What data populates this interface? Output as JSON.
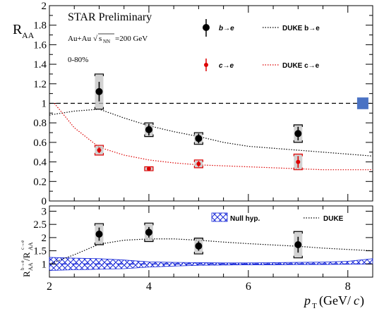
{
  "chart_data": [
    {
      "type": "scatter",
      "title": "STAR Preliminary",
      "subtitle": "Au+Au √sNN=200 GeV",
      "centrality": "0-80%",
      "ylabel": "R_AA",
      "xlabel": "p_T (GeV/c)",
      "xlim": [
        2,
        8.5
      ],
      "ylim": [
        0,
        2
      ],
      "yticks": [
        "0",
        "0.2",
        "0.4",
        "0.6",
        "0.8",
        "1",
        "1.2",
        "1.4",
        "1.6",
        "1.8",
        "2"
      ],
      "reference_line": 1,
      "legend": {
        "placement": "top",
        "bottom_e": "b→e",
        "charm_e": "c→e",
        "duke_b": "DUKE  b→e",
        "duke_c": "DUKE  c→e"
      },
      "series": [
        {
          "name": "b→e",
          "color": "#000000",
          "points": [
            {
              "x": 3.0,
              "y": 1.12,
              "err": 0.1,
              "sys": 0.18
            },
            {
              "x": 4.0,
              "y": 0.73,
              "err": 0.06,
              "sys": 0.07
            },
            {
              "x": 5.0,
              "y": 0.64,
              "err": 0.05,
              "sys": 0.06
            },
            {
              "x": 7.0,
              "y": 0.69,
              "err": 0.07,
              "sys": 0.09
            }
          ]
        },
        {
          "name": "c→e",
          "color": "#dd0000",
          "points": [
            {
              "x": 3.0,
              "y": 0.52,
              "err": 0.03,
              "sys": 0.05
            },
            {
              "x": 4.0,
              "y": 0.33,
              "err": 0.015,
              "sys": 0.02
            },
            {
              "x": 5.0,
              "y": 0.38,
              "err": 0.03,
              "sys": 0.04
            },
            {
              "x": 7.0,
              "y": 0.4,
              "err": 0.06,
              "sys": 0.08
            }
          ]
        },
        {
          "name": "DUKE  b→e",
          "color": "#000000",
          "style": "dotted",
          "x": [
            2.0,
            2.5,
            3.0,
            3.5,
            4.0,
            4.5,
            5.0,
            5.5,
            6.0,
            6.5,
            7.0,
            7.5,
            8.0,
            8.5
          ],
          "y": [
            0.88,
            0.92,
            0.94,
            0.85,
            0.77,
            0.71,
            0.66,
            0.6,
            0.56,
            0.54,
            0.52,
            0.5,
            0.48,
            0.46
          ]
        },
        {
          "name": "DUKE  c→e",
          "color": "#dd0000",
          "style": "dotted",
          "x": [
            2.1,
            2.5,
            3.0,
            3.5,
            4.0,
            4.5,
            5.0,
            5.5,
            6.0,
            6.5,
            7.0,
            7.5,
            8.0,
            8.5
          ],
          "y": [
            1.0,
            0.75,
            0.55,
            0.47,
            0.42,
            0.39,
            0.37,
            0.36,
            0.35,
            0.34,
            0.33,
            0.32,
            0.32,
            0.32
          ]
        }
      ],
      "norm_box": {
        "x": 8.3,
        "y": 1.0,
        "half": 0.06,
        "color": "#4a72c4"
      }
    },
    {
      "type": "scatter",
      "ylabel": "R_AA^{b→e} / R_AA^{c→e}",
      "xlabel": "p_T (GeV/c)",
      "xlim": [
        2,
        8.5
      ],
      "ylim": [
        0.5,
        3.2
      ],
      "xticks": [
        "2",
        "4",
        "6",
        "8"
      ],
      "yticks": [
        "1",
        "1.5",
        "2",
        "2.5",
        "3"
      ],
      "legend": {
        "placement": "top",
        "null_hyp": "Null hyp.",
        "duke": "DUKE"
      },
      "series": [
        {
          "name": "ratio",
          "color": "#000000",
          "points": [
            {
              "x": 3.0,
              "y": 2.13,
              "err": 0.25,
              "sys": 0.4
            },
            {
              "x": 4.0,
              "y": 2.2,
              "err": 0.2,
              "sys": 0.35
            },
            {
              "x": 5.0,
              "y": 1.68,
              "err": 0.18,
              "sys": 0.3
            },
            {
              "x": 7.0,
              "y": 1.73,
              "err": 0.3,
              "sys": 0.5
            }
          ]
        },
        {
          "name": "DUKE",
          "color": "#000000",
          "style": "dotted",
          "x": [
            2.0,
            2.5,
            3.0,
            3.5,
            4.0,
            4.5,
            5.0,
            5.5,
            6.0,
            6.5,
            7.0,
            7.5,
            8.0,
            8.5
          ],
          "y": [
            1.0,
            1.35,
            1.75,
            1.9,
            1.95,
            1.95,
            1.9,
            1.83,
            1.77,
            1.72,
            1.67,
            1.6,
            1.55,
            1.5
          ]
        },
        {
          "name": "Null hyp.",
          "color": "#1a2ad8",
          "x": [
            2.0,
            2.5,
            3.0,
            3.5,
            4.0,
            4.5,
            5.0,
            5.5,
            6.0,
            6.5,
            7.0,
            7.5,
            8.0,
            8.5
          ],
          "low": [
            0.75,
            0.78,
            0.8,
            0.82,
            0.88,
            0.92,
            0.95,
            0.96,
            0.97,
            0.97,
            0.98,
            0.98,
            0.99,
            1.0
          ],
          "high": [
            1.25,
            1.22,
            1.2,
            1.15,
            1.08,
            1.06,
            1.05,
            1.04,
            1.04,
            1.05,
            1.06,
            1.07,
            1.1,
            1.2
          ]
        }
      ]
    }
  ]
}
